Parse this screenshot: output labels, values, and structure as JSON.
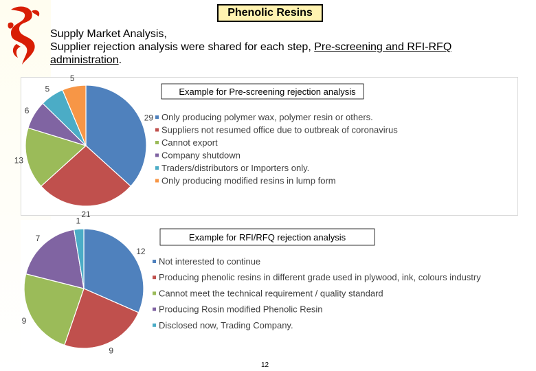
{
  "header": {
    "title": "Phenolic Resins",
    "subtitle_line1": "Supply Market Analysis,",
    "subtitle_line2a": "Supplier rejection analysis were shared for each step, ",
    "subtitle_line2b": "Pre-screening and RFI-RFQ",
    "subtitle_line3": "administration",
    "subtitle_line3_end": "."
  },
  "chart_data": [
    {
      "type": "pie",
      "title": "Example for Pre-screening rejection analysis",
      "categories": [
        "Only producing polymer wax, polymer resin or others.",
        "Suppliers not resumed office due to outbreak of coronavirus",
        "Cannot export",
        "Company shutdown",
        "Traders/distributors or Importers only.",
        "Only producing modified resins in lump form"
      ],
      "values": [
        29,
        21,
        13,
        6,
        5,
        5
      ],
      "colors": [
        "#4f81bd",
        "#c0504d",
        "#9bbb59",
        "#8064a2",
        "#4bacc6",
        "#f79646"
      ],
      "legend": "right"
    },
    {
      "type": "pie",
      "title": "Example for RFI/RFQ rejection analysis",
      "categories": [
        "Not interested to continue",
        "Producing phenolic resins in different grade used in plywood, ink, colours industry",
        "Cannot meet the technical requirement / quality standard",
        "Producing Rosin modified Phenolic Resin",
        "Disclosed now, Trading Company."
      ],
      "values": [
        12,
        9,
        9,
        7,
        1
      ],
      "colors": [
        "#4f81bd",
        "#c0504d",
        "#9bbb59",
        "#8064a2",
        "#4bacc6"
      ],
      "legend": "right"
    }
  ],
  "footer": {
    "page_number": "12"
  }
}
